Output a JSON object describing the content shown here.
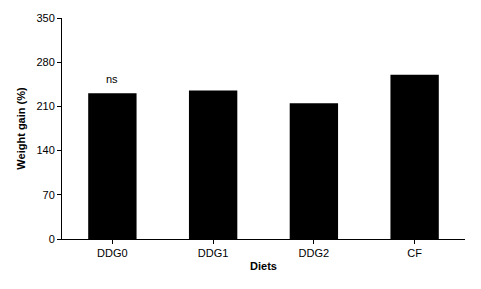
{
  "chart_data": {
    "type": "bar",
    "x_label": "Diets",
    "y_label": "Weight gain (%)",
    "categories": [
      "DDG0",
      "DDG1",
      "DDG2",
      "CF"
    ],
    "values": [
      231,
      235,
      215,
      260
    ],
    "color": "#000000",
    "ylim": [
      0,
      350
    ],
    "yticks": [
      0,
      70,
      140,
      210,
      280,
      350
    ],
    "grid": false,
    "annotations": [
      {
        "text": "ns",
        "category": "DDG0"
      }
    ]
  }
}
